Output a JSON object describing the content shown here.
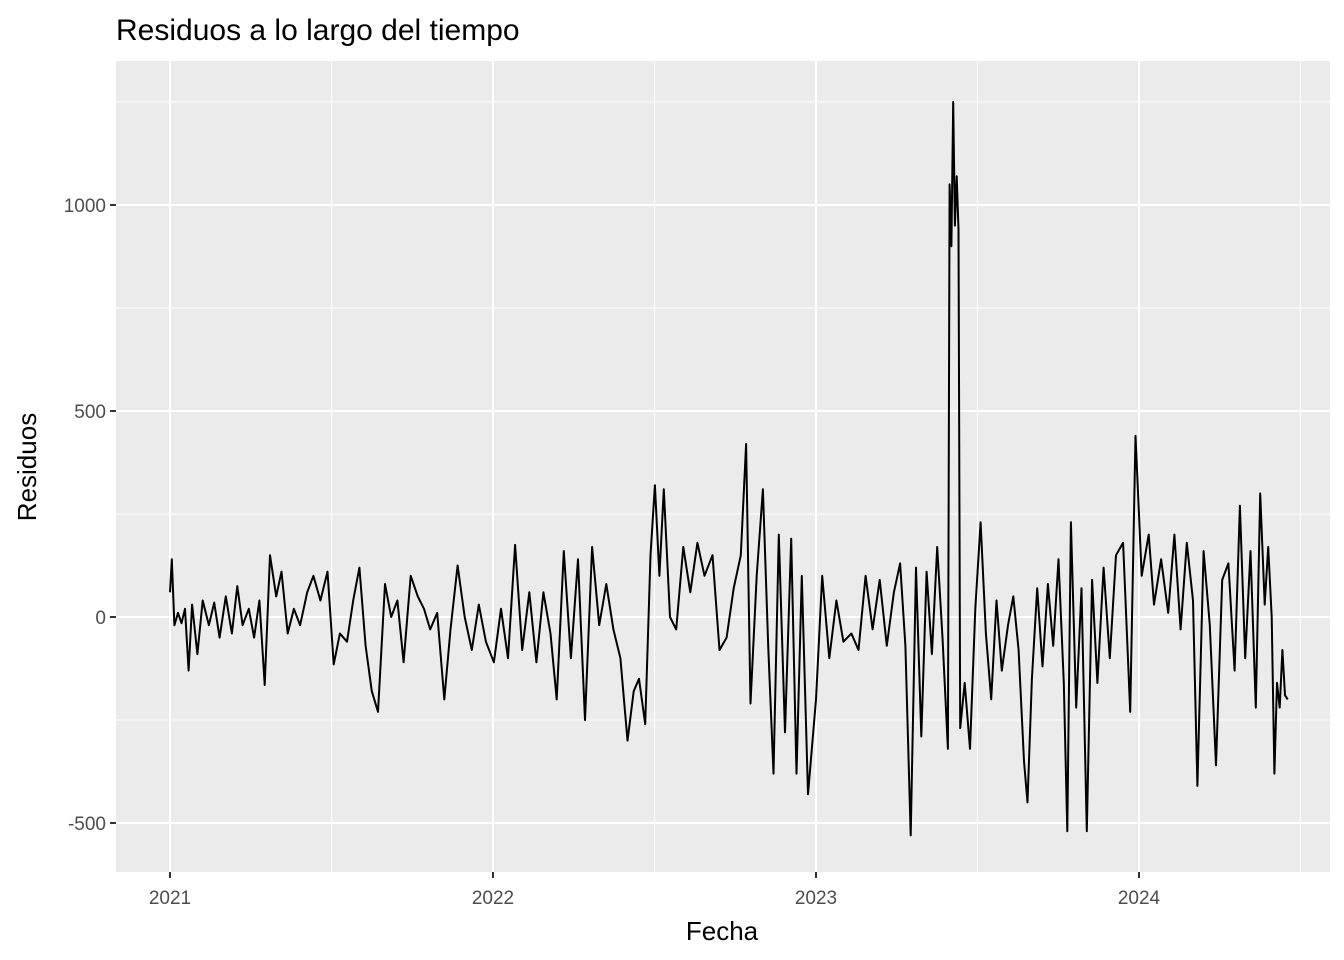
{
  "chart_data": {
    "type": "line",
    "title": "Residuos a lo largo del tiempo",
    "xlabel": "Fecha",
    "ylabel": "Residuos",
    "x_range": [
      "2021-01-01",
      "2024-06-01"
    ],
    "ylim": [
      -520,
      1240
    ],
    "x_ticks": [
      {
        "value": "2021-01-01",
        "label": "2021"
      },
      {
        "value": "2022-01-01",
        "label": "2022"
      },
      {
        "value": "2023-01-01",
        "label": "2023"
      },
      {
        "value": "2024-01-01",
        "label": "2024"
      }
    ],
    "y_ticks": [
      {
        "value": -500,
        "label": "-500"
      },
      {
        "value": 0,
        "label": "0"
      },
      {
        "value": 500,
        "label": "500"
      },
      {
        "value": 1000,
        "label": "1000"
      }
    ],
    "grid": true,
    "line_color": "#000000",
    "panel_color": "#ebebeb",
    "series": [
      {
        "points": [
          [
            "2021-01-01",
            60
          ],
          [
            "2021-01-03",
            140
          ],
          [
            "2021-01-06",
            -20
          ],
          [
            "2021-01-10",
            10
          ],
          [
            "2021-01-14",
            -15
          ],
          [
            "2021-01-18",
            20
          ],
          [
            "2021-01-22",
            -130
          ],
          [
            "2021-01-26",
            30
          ],
          [
            "2021-02-01",
            -90
          ],
          [
            "2021-02-07",
            40
          ],
          [
            "2021-02-14",
            -20
          ],
          [
            "2021-02-20",
            35
          ],
          [
            "2021-02-26",
            -50
          ],
          [
            "2021-03-05",
            50
          ],
          [
            "2021-03-12",
            -40
          ],
          [
            "2021-03-18",
            75
          ],
          [
            "2021-03-24",
            -20
          ],
          [
            "2021-03-31",
            20
          ],
          [
            "2021-04-06",
            -50
          ],
          [
            "2021-04-12",
            40
          ],
          [
            "2021-04-18",
            -165
          ],
          [
            "2021-04-24",
            150
          ],
          [
            "2021-05-01",
            50
          ],
          [
            "2021-05-07",
            110
          ],
          [
            "2021-05-14",
            -40
          ],
          [
            "2021-05-21",
            20
          ],
          [
            "2021-05-28",
            -20
          ],
          [
            "2021-06-05",
            60
          ],
          [
            "2021-06-12",
            100
          ],
          [
            "2021-06-20",
            40
          ],
          [
            "2021-06-28",
            110
          ],
          [
            "2021-07-05",
            -115
          ],
          [
            "2021-07-12",
            -40
          ],
          [
            "2021-07-20",
            -60
          ],
          [
            "2021-07-27",
            40
          ],
          [
            "2021-08-03",
            120
          ],
          [
            "2021-08-10",
            -70
          ],
          [
            "2021-08-17",
            -180
          ],
          [
            "2021-08-24",
            -230
          ],
          [
            "2021-09-01",
            80
          ],
          [
            "2021-09-08",
            0
          ],
          [
            "2021-09-15",
            40
          ],
          [
            "2021-09-22",
            -110
          ],
          [
            "2021-09-30",
            100
          ],
          [
            "2021-10-08",
            50
          ],
          [
            "2021-10-15",
            20
          ],
          [
            "2021-10-22",
            -30
          ],
          [
            "2021-10-30",
            10
          ],
          [
            "2021-11-07",
            -200
          ],
          [
            "2021-11-14",
            -30
          ],
          [
            "2021-11-22",
            125
          ],
          [
            "2021-11-30",
            0
          ],
          [
            "2021-12-08",
            -80
          ],
          [
            "2021-12-16",
            30
          ],
          [
            "2021-12-24",
            -60
          ],
          [
            "2022-01-02",
            -110
          ],
          [
            "2022-01-10",
            20
          ],
          [
            "2022-01-18",
            -100
          ],
          [
            "2022-01-26",
            175
          ],
          [
            "2022-02-03",
            -80
          ],
          [
            "2022-02-11",
            60
          ],
          [
            "2022-02-19",
            -110
          ],
          [
            "2022-02-27",
            60
          ],
          [
            "2022-03-07",
            -40
          ],
          [
            "2022-03-14",
            -200
          ],
          [
            "2022-03-22",
            160
          ],
          [
            "2022-03-30",
            -100
          ],
          [
            "2022-04-07",
            140
          ],
          [
            "2022-04-15",
            -250
          ],
          [
            "2022-04-23",
            170
          ],
          [
            "2022-05-01",
            -20
          ],
          [
            "2022-05-09",
            80
          ],
          [
            "2022-05-17",
            -30
          ],
          [
            "2022-05-25",
            -100
          ],
          [
            "2022-06-02",
            -300
          ],
          [
            "2022-06-09",
            -180
          ],
          [
            "2022-06-15",
            -150
          ],
          [
            "2022-06-22",
            -260
          ],
          [
            "2022-06-28",
            150
          ],
          [
            "2022-07-03",
            320
          ],
          [
            "2022-07-08",
            100
          ],
          [
            "2022-07-13",
            310
          ],
          [
            "2022-07-20",
            0
          ],
          [
            "2022-07-27",
            -30
          ],
          [
            "2022-08-04",
            170
          ],
          [
            "2022-08-12",
            60
          ],
          [
            "2022-08-20",
            180
          ],
          [
            "2022-08-28",
            100
          ],
          [
            "2022-09-06",
            150
          ],
          [
            "2022-09-14",
            -80
          ],
          [
            "2022-09-22",
            -50
          ],
          [
            "2022-09-30",
            70
          ],
          [
            "2022-10-08",
            150
          ],
          [
            "2022-10-14",
            420
          ],
          [
            "2022-10-19",
            -210
          ],
          [
            "2022-10-26",
            100
          ],
          [
            "2022-11-02",
            310
          ],
          [
            "2022-11-08",
            -70
          ],
          [
            "2022-11-14",
            -380
          ],
          [
            "2022-11-20",
            200
          ],
          [
            "2022-11-27",
            -280
          ],
          [
            "2022-12-04",
            190
          ],
          [
            "2022-12-10",
            -380
          ],
          [
            "2022-12-16",
            100
          ],
          [
            "2022-12-23",
            -430
          ],
          [
            "2023-01-01",
            -200
          ],
          [
            "2023-01-08",
            100
          ],
          [
            "2023-01-16",
            -100
          ],
          [
            "2023-01-24",
            40
          ],
          [
            "2023-02-01",
            -60
          ],
          [
            "2023-02-10",
            -40
          ],
          [
            "2023-02-18",
            -80
          ],
          [
            "2023-02-26",
            100
          ],
          [
            "2023-03-06",
            -30
          ],
          [
            "2023-03-14",
            90
          ],
          [
            "2023-03-22",
            -70
          ],
          [
            "2023-03-30",
            60
          ],
          [
            "2023-04-06",
            130
          ],
          [
            "2023-04-12",
            -70
          ],
          [
            "2023-04-18",
            -530
          ],
          [
            "2023-04-24",
            120
          ],
          [
            "2023-04-30",
            -290
          ],
          [
            "2023-05-06",
            110
          ],
          [
            "2023-05-12",
            -90
          ],
          [
            "2023-05-18",
            170
          ],
          [
            "2023-05-24",
            -50
          ],
          [
            "2023-05-30",
            -320
          ],
          [
            "2023-06-01",
            1050
          ],
          [
            "2023-06-03",
            900
          ],
          [
            "2023-06-05",
            1250
          ],
          [
            "2023-06-07",
            950
          ],
          [
            "2023-06-09",
            1070
          ],
          [
            "2023-06-11",
            940
          ],
          [
            "2023-06-13",
            -270
          ],
          [
            "2023-06-18",
            -160
          ],
          [
            "2023-06-24",
            -320
          ],
          [
            "2023-06-30",
            20
          ],
          [
            "2023-07-06",
            230
          ],
          [
            "2023-07-12",
            -40
          ],
          [
            "2023-07-18",
            -200
          ],
          [
            "2023-07-24",
            40
          ],
          [
            "2023-07-30",
            -130
          ],
          [
            "2023-08-06",
            -20
          ],
          [
            "2023-08-12",
            50
          ],
          [
            "2023-08-18",
            -80
          ],
          [
            "2023-08-24",
            -350
          ],
          [
            "2023-08-28",
            -450
          ],
          [
            "2023-09-02",
            -150
          ],
          [
            "2023-09-08",
            70
          ],
          [
            "2023-09-14",
            -120
          ],
          [
            "2023-09-20",
            80
          ],
          [
            "2023-09-26",
            -70
          ],
          [
            "2023-10-02",
            140
          ],
          [
            "2023-10-08",
            -160
          ],
          [
            "2023-10-12",
            -520
          ],
          [
            "2023-10-16",
            230
          ],
          [
            "2023-10-22",
            -220
          ],
          [
            "2023-10-28",
            70
          ],
          [
            "2023-11-03",
            -520
          ],
          [
            "2023-11-09",
            90
          ],
          [
            "2023-11-15",
            -160
          ],
          [
            "2023-11-22",
            120
          ],
          [
            "2023-11-29",
            -100
          ],
          [
            "2023-12-06",
            150
          ],
          [
            "2023-12-14",
            180
          ],
          [
            "2023-12-22",
            -230
          ],
          [
            "2023-12-28",
            440
          ],
          [
            "2024-01-04",
            100
          ],
          [
            "2024-01-12",
            200
          ],
          [
            "2024-01-18",
            30
          ],
          [
            "2024-01-26",
            140
          ],
          [
            "2024-02-03",
            10
          ],
          [
            "2024-02-10",
            200
          ],
          [
            "2024-02-17",
            -30
          ],
          [
            "2024-02-24",
            180
          ],
          [
            "2024-03-02",
            40
          ],
          [
            "2024-03-07",
            -410
          ],
          [
            "2024-03-14",
            160
          ],
          [
            "2024-03-21",
            -20
          ],
          [
            "2024-03-28",
            -360
          ],
          [
            "2024-04-04",
            90
          ],
          [
            "2024-04-11",
            130
          ],
          [
            "2024-04-18",
            -130
          ],
          [
            "2024-04-24",
            270
          ],
          [
            "2024-04-30",
            -100
          ],
          [
            "2024-05-06",
            160
          ],
          [
            "2024-05-12",
            -220
          ],
          [
            "2024-05-17",
            300
          ],
          [
            "2024-05-22",
            30
          ],
          [
            "2024-05-26",
            170
          ],
          [
            "2024-05-30",
            0
          ],
          [
            "2024-06-02",
            -380
          ],
          [
            "2024-06-05",
            -160
          ],
          [
            "2024-06-08",
            -220
          ],
          [
            "2024-06-11",
            -80
          ],
          [
            "2024-06-14",
            -190
          ],
          [
            "2024-06-17",
            -200
          ]
        ]
      }
    ]
  }
}
